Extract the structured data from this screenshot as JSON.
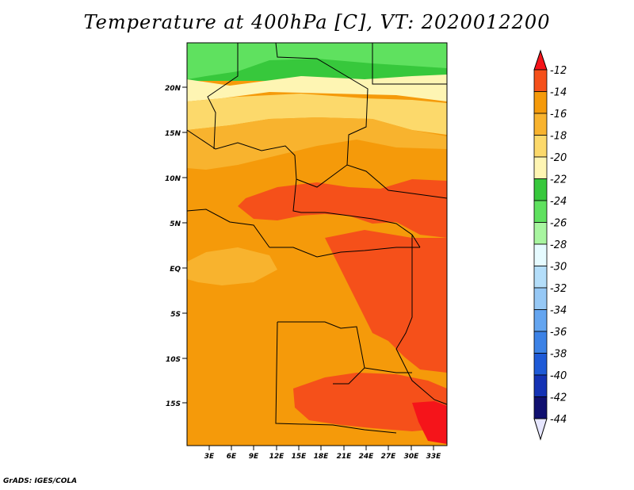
{
  "title": "Temperature at 400hPa [C], VT: 2020012200",
  "credit": "GrADS: IGES/COLA",
  "map": {
    "lat_labels": [
      "20N",
      "15N",
      "10N",
      "5N",
      "EQ",
      "5S",
      "10S",
      "15S"
    ],
    "lon_labels": [
      "3E",
      "6E",
      "9E",
      "12E",
      "15E",
      "18E",
      "21E",
      "24E",
      "27E",
      "30E",
      "33E"
    ]
  },
  "colorbar": {
    "labels": [
      "-12",
      "-14",
      "-16",
      "-18",
      "-20",
      "-22",
      "-24",
      "-26",
      "-28",
      "-30",
      "-32",
      "-34",
      "-36",
      "-38",
      "-40",
      "-42",
      "-44"
    ],
    "colors": [
      "#f5141a",
      "#f5501a",
      "#f59a0a",
      "#f8b32e",
      "#fcd96b",
      "#fef5b3",
      "#37c83c",
      "#5fe15f",
      "#a8f5a0",
      "#e6fbff",
      "#b4defa",
      "#96c8f5",
      "#64a5f0",
      "#3c82e6",
      "#1e5ad7",
      "#1432b4",
      "#101070",
      "#e6e6ff"
    ]
  }
}
